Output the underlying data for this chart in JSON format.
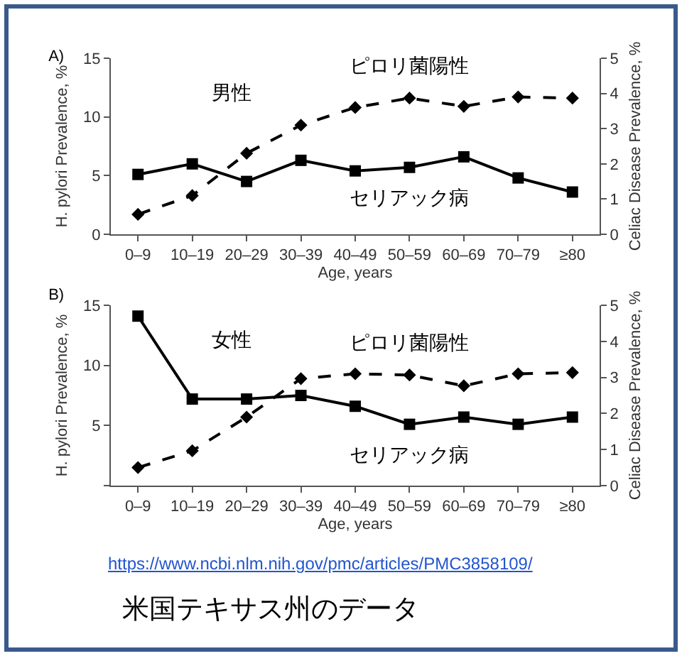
{
  "chart_data": [
    {
      "type": "line",
      "title": "A)",
      "xlabel": "Age, years",
      "ylabel": "H. pylori Prevalence, %",
      "y2label": "Celiac Disease Prevalence, %",
      "categories": [
        "0–9",
        "10–19",
        "20–29",
        "30–39",
        "40–49",
        "50–59",
        "60–69",
        "70–79",
        "≥80"
      ],
      "series": [
        {
          "name": "ピロリ菌陽性",
          "color": "#000000",
          "line_style": "dashed",
          "marker": "diamond",
          "values": [
            1.7,
            3.3,
            6.9,
            9.3,
            10.8,
            11.6,
            10.9,
            11.7,
            11.6
          ]
        },
        {
          "name": "セリアック病",
          "color": "#000000",
          "line_style": "solid",
          "marker": "square",
          "axis": "y2",
          "values": [
            1.7,
            2.0,
            1.5,
            2.1,
            1.8,
            1.9,
            2.2,
            1.6,
            1.2
          ]
        }
      ],
      "ylim": [
        0,
        15
      ],
      "yticks": [
        0,
        5,
        10,
        15
      ],
      "y2lim": [
        0,
        5
      ],
      "y2ticks": [
        0,
        1,
        2,
        3,
        4,
        5
      ],
      "annotations": [
        "男性"
      ]
    },
    {
      "type": "line",
      "title": "B)",
      "xlabel": "Age, years",
      "ylabel": "H. pylori Prevalence, %",
      "y2label": "Celiac Disease Prevalence, %",
      "categories": [
        "0–9",
        "10–19",
        "20–29",
        "30–39",
        "40–49",
        "50–59",
        "60–69",
        "70–79",
        "≥80"
      ],
      "series": [
        {
          "name": "ピロリ菌陽性",
          "color": "#000000",
          "line_style": "dashed",
          "marker": "diamond",
          "values": [
            1.5,
            2.9,
            5.7,
            8.9,
            9.3,
            9.2,
            8.3,
            9.3,
            9.4
          ]
        },
        {
          "name": "セリアック病",
          "color": "#000000",
          "line_style": "solid",
          "marker": "square",
          "axis": "y2",
          "values": [
            4.7,
            2.4,
            2.4,
            2.5,
            2.2,
            1.7,
            1.9,
            1.7,
            1.9
          ]
        }
      ],
      "ylim": [
        0,
        15
      ],
      "yticks": [
        {
          "value": 0,
          "label": null
        },
        5,
        10,
        15
      ],
      "y2lim": [
        0,
        5
      ],
      "y2ticks": [
        0,
        1,
        2,
        3,
        4,
        5
      ],
      "annotations": [
        "女性",
        "https://www.ncbi.nlm.nih.gov/pmc/articles/PMC3858109/",
        "米国テキサス州のデータ"
      ]
    }
  ]
}
